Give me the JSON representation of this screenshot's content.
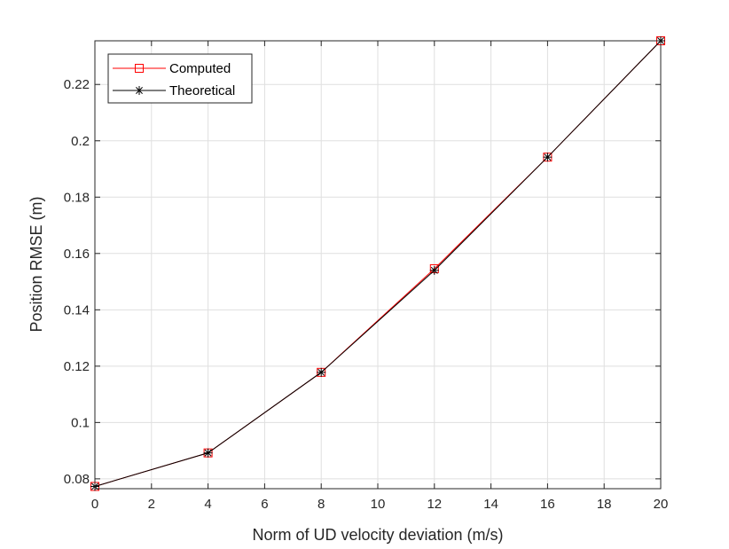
{
  "chart_data": {
    "type": "line",
    "title": "",
    "xlabel": "Norm of UD velocity deviation (m/s)",
    "ylabel": "Position RMSE (m)",
    "xlim": [
      0,
      20
    ],
    "ylim": [
      0.0765,
      0.2355
    ],
    "xticks": [
      "0",
      "2",
      "4",
      "6",
      "8",
      "10",
      "12",
      "14",
      "16",
      "18",
      "20"
    ],
    "yticks": [
      "0.08",
      "0.1",
      "0.12",
      "0.14",
      "0.16",
      "0.18",
      "0.2",
      "0.22"
    ],
    "grid": true,
    "legend_position": "top-left",
    "x": [
      0,
      4,
      8,
      12,
      16,
      20
    ],
    "series": [
      {
        "name": "Computed",
        "values": [
          0.0773,
          0.0892,
          0.1178,
          0.1546,
          0.1942,
          0.2355
        ],
        "color": "#ff0000",
        "marker": "square"
      },
      {
        "name": "Theoretical",
        "values": [
          0.0773,
          0.0892,
          0.1178,
          0.154,
          0.1942,
          0.2355
        ],
        "color": "#000000",
        "marker": "asterisk"
      }
    ]
  }
}
